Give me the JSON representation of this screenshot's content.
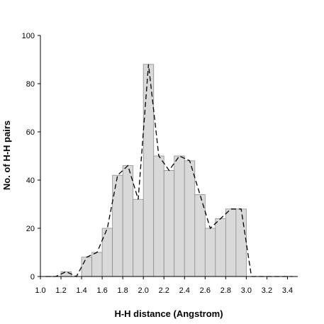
{
  "chart_data": {
    "type": "bar",
    "title": "",
    "xlabel": "H-H distance (Angstrom)",
    "ylabel": "No. of H-H pairs",
    "xlim": [
      1.0,
      3.5
    ],
    "ylim": [
      0,
      100
    ],
    "x_ticks": [
      "1.0",
      "1.2",
      "1.4",
      "1.6",
      "1.8",
      "2.0",
      "2.2",
      "2.4",
      "2.6",
      "2.8",
      "3.0",
      "3.2",
      "3.4"
    ],
    "y_ticks": [
      "0",
      "20",
      "40",
      "60",
      "80",
      "100"
    ],
    "grid": false,
    "bin_width": 0.1,
    "bins": [
      {
        "x": 1.25,
        "value": 2
      },
      {
        "x": 1.45,
        "value": 8
      },
      {
        "x": 1.55,
        "value": 10
      },
      {
        "x": 1.65,
        "value": 20
      },
      {
        "x": 1.75,
        "value": 42
      },
      {
        "x": 1.85,
        "value": 46
      },
      {
        "x": 1.95,
        "value": 32
      },
      {
        "x": 2.05,
        "value": 88
      },
      {
        "x": 2.15,
        "value": 50
      },
      {
        "x": 2.25,
        "value": 44
      },
      {
        "x": 2.35,
        "value": 50
      },
      {
        "x": 2.45,
        "value": 48
      },
      {
        "x": 2.55,
        "value": 34
      },
      {
        "x": 2.65,
        "value": 20
      },
      {
        "x": 2.75,
        "value": 24
      },
      {
        "x": 2.85,
        "value": 28
      },
      {
        "x": 2.95,
        "value": 28
      }
    ],
    "fit_line": {
      "style": "dashed",
      "points": [
        [
          1.05,
          0
        ],
        [
          1.15,
          0
        ],
        [
          1.25,
          2
        ],
        [
          1.35,
          0
        ],
        [
          1.45,
          8
        ],
        [
          1.55,
          10
        ],
        [
          1.65,
          20
        ],
        [
          1.75,
          42
        ],
        [
          1.85,
          46
        ],
        [
          1.95,
          32
        ],
        [
          2.05,
          88
        ],
        [
          2.15,
          50
        ],
        [
          2.25,
          44
        ],
        [
          2.35,
          50
        ],
        [
          2.45,
          48
        ],
        [
          2.55,
          34
        ],
        [
          2.65,
          20
        ],
        [
          2.75,
          24
        ],
        [
          2.85,
          28
        ],
        [
          2.95,
          28
        ],
        [
          3.05,
          0
        ],
        [
          3.15,
          0
        ],
        [
          3.25,
          0
        ],
        [
          3.35,
          0
        ],
        [
          3.45,
          0
        ]
      ]
    },
    "colors": {
      "bar_fill": "#d9d9d9",
      "bar_stroke": "#8c8c8c",
      "line": "#000000",
      "axis": "#000000"
    }
  }
}
